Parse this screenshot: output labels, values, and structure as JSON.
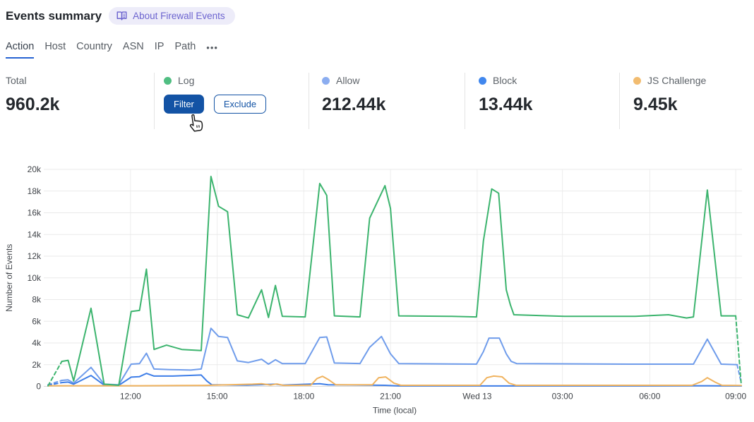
{
  "header": {
    "title": "Events summary",
    "about_label": "About Firewall Events"
  },
  "tabs": {
    "items": [
      {
        "label": "Action",
        "active": true
      },
      {
        "label": "Host",
        "active": false
      },
      {
        "label": "Country",
        "active": false
      },
      {
        "label": "ASN",
        "active": false
      },
      {
        "label": "IP",
        "active": false
      },
      {
        "label": "Path",
        "active": false
      }
    ],
    "more_label": "•••"
  },
  "stats": {
    "columns": [
      {
        "label": "Total",
        "value": "960.2k"
      },
      {
        "label": "Log",
        "dot_color": "#50be82",
        "buttons": {
          "filter": "Filter",
          "exclude": "Exclude"
        }
      },
      {
        "label": "Allow",
        "dot_color": "#8badf0",
        "value": "212.44k"
      },
      {
        "label": "Block",
        "dot_color": "#4087ee",
        "value": "13.44k"
      },
      {
        "label": "JS Challenge",
        "dot_color": "#f2bc70",
        "value": "9.45k"
      }
    ],
    "accent_button_color": "#1353a5"
  },
  "chart_data": {
    "type": "line",
    "xlabel": "Time (local)",
    "ylabel": "Number of Events",
    "ylim": [
      0,
      20
    ],
    "grid": true,
    "yticks": [
      {
        "v": 0,
        "label": "0"
      },
      {
        "v": 2,
        "label": "2k"
      },
      {
        "v": 4,
        "label": "4k"
      },
      {
        "v": 6,
        "label": "6k"
      },
      {
        "v": 8,
        "label": "8k"
      },
      {
        "v": 10,
        "label": "10k"
      },
      {
        "v": 12,
        "label": "12k"
      },
      {
        "v": 14,
        "label": "14k"
      },
      {
        "v": 16,
        "label": "16k"
      },
      {
        "v": 18,
        "label": "18k"
      },
      {
        "v": 20,
        "label": "20k"
      }
    ],
    "xticks": [
      {
        "f": 0.119,
        "label": "12:00"
      },
      {
        "f": 0.244,
        "label": "15:00"
      },
      {
        "f": 0.369,
        "label": "18:00"
      },
      {
        "f": 0.494,
        "label": "21:00"
      },
      {
        "f": 0.619,
        "label": "Wed 13"
      },
      {
        "f": 0.742,
        "label": "03:00"
      },
      {
        "f": 0.868,
        "label": "06:00"
      },
      {
        "f": 0.992,
        "label": "09:00"
      }
    ],
    "series": [
      {
        "name": "Allow",
        "color": "#6f9ceb",
        "dash_start": true,
        "dash_end": true,
        "points": [
          [
            0.0,
            0.15
          ],
          [
            0.02,
            0.55
          ],
          [
            0.029,
            0.6
          ],
          [
            0.037,
            0.3
          ],
          [
            0.062,
            1.75
          ],
          [
            0.081,
            0.2
          ],
          [
            0.102,
            0.15
          ],
          [
            0.12,
            2.05
          ],
          [
            0.132,
            2.1
          ],
          [
            0.142,
            3.05
          ],
          [
            0.153,
            1.6
          ],
          [
            0.175,
            1.55
          ],
          [
            0.206,
            1.5
          ],
          [
            0.221,
            1.6
          ],
          [
            0.235,
            5.35
          ],
          [
            0.246,
            4.6
          ],
          [
            0.259,
            4.5
          ],
          [
            0.273,
            2.35
          ],
          [
            0.289,
            2.2
          ],
          [
            0.308,
            2.5
          ],
          [
            0.318,
            2.05
          ],
          [
            0.328,
            2.45
          ],
          [
            0.338,
            2.1
          ],
          [
            0.371,
            2.1
          ],
          [
            0.392,
            4.5
          ],
          [
            0.402,
            4.55
          ],
          [
            0.413,
            2.15
          ],
          [
            0.45,
            2.1
          ],
          [
            0.464,
            3.6
          ],
          [
            0.481,
            4.6
          ],
          [
            0.494,
            3.0
          ],
          [
            0.506,
            2.1
          ],
          [
            0.618,
            2.05
          ],
          [
            0.628,
            3.2
          ],
          [
            0.636,
            4.45
          ],
          [
            0.651,
            4.45
          ],
          [
            0.661,
            3.0
          ],
          [
            0.668,
            2.3
          ],
          [
            0.676,
            2.1
          ],
          [
            0.847,
            2.05
          ],
          [
            0.931,
            2.05
          ],
          [
            0.951,
            4.35
          ],
          [
            0.971,
            2.05
          ],
          [
            0.994,
            2.0
          ],
          [
            1.0,
            0.3
          ]
        ]
      },
      {
        "name": "Block",
        "color": "#3e7ee8",
        "dash_start": true,
        "dash_end": false,
        "points": [
          [
            0.0,
            0.1
          ],
          [
            0.02,
            0.35
          ],
          [
            0.029,
            0.4
          ],
          [
            0.037,
            0.2
          ],
          [
            0.062,
            1.0
          ],
          [
            0.081,
            0.12
          ],
          [
            0.102,
            0.1
          ],
          [
            0.12,
            0.85
          ],
          [
            0.132,
            0.9
          ],
          [
            0.142,
            1.2
          ],
          [
            0.153,
            0.95
          ],
          [
            0.18,
            0.95
          ],
          [
            0.201,
            1.0
          ],
          [
            0.221,
            1.05
          ],
          [
            0.229,
            0.5
          ],
          [
            0.236,
            0.15
          ],
          [
            0.287,
            0.12
          ],
          [
            0.328,
            0.2
          ],
          [
            0.338,
            0.12
          ],
          [
            0.392,
            0.25
          ],
          [
            0.404,
            0.15
          ],
          [
            0.486,
            0.1
          ],
          [
            0.506,
            0.04
          ],
          [
            0.847,
            0.04
          ],
          [
            0.951,
            0.06
          ],
          [
            1.0,
            0.04
          ]
        ]
      },
      {
        "name": "JS Challenge",
        "color": "#f0b35f",
        "dash_start": false,
        "dash_end": false,
        "points": [
          [
            0.0,
            0.06
          ],
          [
            0.134,
            0.06
          ],
          [
            0.226,
            0.09
          ],
          [
            0.295,
            0.2
          ],
          [
            0.308,
            0.25
          ],
          [
            0.321,
            0.12
          ],
          [
            0.33,
            0.22
          ],
          [
            0.34,
            0.09
          ],
          [
            0.379,
            0.12
          ],
          [
            0.388,
            0.72
          ],
          [
            0.396,
            0.93
          ],
          [
            0.405,
            0.6
          ],
          [
            0.415,
            0.15
          ],
          [
            0.468,
            0.15
          ],
          [
            0.477,
            0.8
          ],
          [
            0.487,
            0.87
          ],
          [
            0.499,
            0.3
          ],
          [
            0.509,
            0.1
          ],
          [
            0.623,
            0.1
          ],
          [
            0.633,
            0.8
          ],
          [
            0.643,
            0.95
          ],
          [
            0.655,
            0.88
          ],
          [
            0.665,
            0.3
          ],
          [
            0.675,
            0.1
          ],
          [
            0.929,
            0.1
          ],
          [
            0.943,
            0.45
          ],
          [
            0.951,
            0.8
          ],
          [
            0.962,
            0.4
          ],
          [
            0.972,
            0.1
          ],
          [
            1.0,
            0.08
          ]
        ]
      },
      {
        "name": "Log",
        "color": "#3cb46e",
        "dash_start": true,
        "dash_end": true,
        "points": [
          [
            0.0,
            0.05
          ],
          [
            0.02,
            2.3
          ],
          [
            0.029,
            2.4
          ],
          [
            0.037,
            0.5
          ],
          [
            0.062,
            7.2
          ],
          [
            0.081,
            0.2
          ],
          [
            0.102,
            0.1
          ],
          [
            0.12,
            6.9
          ],
          [
            0.132,
            7.0
          ],
          [
            0.142,
            10.8
          ],
          [
            0.153,
            3.4
          ],
          [
            0.171,
            3.8
          ],
          [
            0.193,
            3.4
          ],
          [
            0.221,
            3.3
          ],
          [
            0.235,
            19.35
          ],
          [
            0.246,
            16.6
          ],
          [
            0.259,
            16.1
          ],
          [
            0.273,
            6.6
          ],
          [
            0.289,
            6.3
          ],
          [
            0.308,
            8.9
          ],
          [
            0.318,
            6.35
          ],
          [
            0.328,
            9.3
          ],
          [
            0.338,
            6.45
          ],
          [
            0.371,
            6.4
          ],
          [
            0.392,
            18.7
          ],
          [
            0.402,
            17.6
          ],
          [
            0.413,
            6.5
          ],
          [
            0.45,
            6.4
          ],
          [
            0.464,
            15.5
          ],
          [
            0.486,
            18.5
          ],
          [
            0.494,
            16.4
          ],
          [
            0.506,
            6.5
          ],
          [
            0.582,
            6.45
          ],
          [
            0.618,
            6.4
          ],
          [
            0.628,
            13.4
          ],
          [
            0.64,
            18.2
          ],
          [
            0.65,
            17.8
          ],
          [
            0.661,
            8.9
          ],
          [
            0.667,
            7.5
          ],
          [
            0.672,
            6.6
          ],
          [
            0.745,
            6.45
          ],
          [
            0.847,
            6.45
          ],
          [
            0.895,
            6.6
          ],
          [
            0.921,
            6.3
          ],
          [
            0.931,
            6.4
          ],
          [
            0.951,
            18.1
          ],
          [
            0.971,
            6.5
          ],
          [
            0.992,
            6.5
          ],
          [
            1.0,
            0.1
          ]
        ]
      }
    ]
  }
}
